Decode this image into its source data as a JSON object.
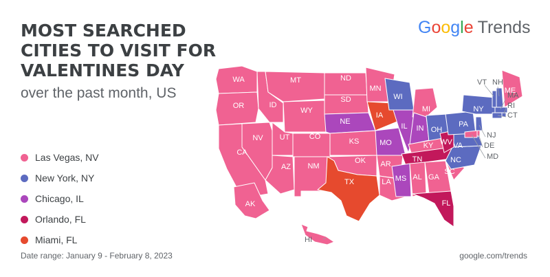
{
  "title_lines": [
    "MOST SEARCHED",
    "CITIES TO VISIT FOR",
    "VALENTINES DAY"
  ],
  "subtitle": "over the past month, US",
  "brand": {
    "google": [
      "G",
      "o",
      "o",
      "g",
      "l",
      "e"
    ],
    "google_colors": [
      "#4285F4",
      "#EA4335",
      "#FBBC05",
      "#4285F4",
      "#34A853",
      "#EA4335"
    ],
    "trends": "Trends"
  },
  "legend": [
    {
      "label": "Las Vegas, NV",
      "color": "#f06292",
      "key": "LV"
    },
    {
      "label": "New York, NY",
      "color": "#5c6bc0",
      "key": "NY"
    },
    {
      "label": "Chicago, IL",
      "color": "#ab47bc",
      "key": "CHI"
    },
    {
      "label": "Orlando, FL",
      "color": "#c2185b",
      "key": "ORL"
    },
    {
      "label": "Miami, FL",
      "color": "#e64a2e",
      "key": "MIA"
    }
  ],
  "states": {
    "WA": "LV",
    "OR": "LV",
    "CA": "LV",
    "NV": "LV",
    "ID": "LV",
    "MT": "LV",
    "WY": "LV",
    "UT": "LV",
    "AZ": "LV",
    "CO": "LV",
    "NM": "LV",
    "ND": "LV",
    "SD": "LV",
    "NE": "CHI",
    "KS": "LV",
    "OK": "LV",
    "TX": "MIA",
    "MN": "LV",
    "IA": "MIA",
    "MO": "CHI",
    "AR": "LV",
    "LA": "LV",
    "WI": "NY",
    "IL": "CHI",
    "MI": "LV",
    "IN": "CHI",
    "OH": "NY",
    "KY": "LV",
    "TN": "ORL",
    "MS": "CHI",
    "AL": "LV",
    "GA": "LV",
    "FL": "ORL",
    "SC": "LV",
    "NC": "NY",
    "VA": "NY",
    "WV": "ORL",
    "PA": "NY",
    "NY": "NY",
    "VT": "NY",
    "NH": "NY",
    "ME": "LV",
    "MA": "NY",
    "RI": "NY",
    "CT": "NY",
    "NJ": "NY",
    "DE": "LV",
    "MD": "LV",
    "AK": "LV",
    "HI": "LV"
  },
  "footer": {
    "date_range": "Date range: January 9 - February 8, 2023",
    "source": "google.com/trends"
  }
}
